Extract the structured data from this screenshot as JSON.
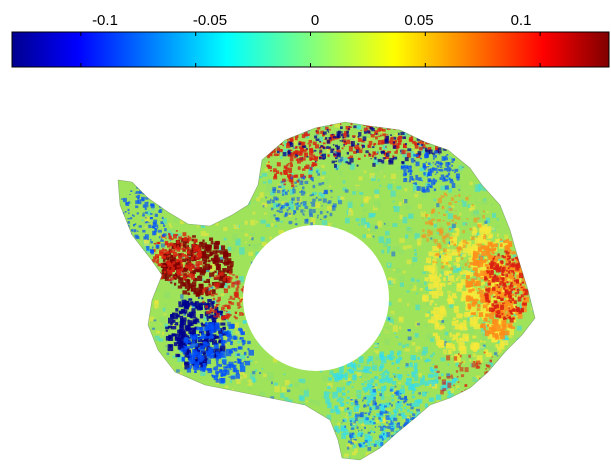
{
  "colorbar": {
    "tick_labels": [
      "-0.1",
      "-0.05",
      "0",
      "0.05",
      "0.1"
    ],
    "tick_values": [
      -0.1,
      -0.05,
      0,
      0.05,
      0.1
    ],
    "range": [
      -0.13,
      0.13
    ],
    "colormap": "jet",
    "orientation": "horizontal",
    "position": "top"
  },
  "map": {
    "region": "Antarctica",
    "masked_center": "pole-hole",
    "dominant_color": "#9ee35a",
    "colors": {
      "dark_blue": "#00008f",
      "blue": "#0050ff",
      "cyan": "#33ddee",
      "green": "#8fe06a",
      "yellow": "#f6e83a",
      "orange": "#ff8c1a",
      "red": "#d92010",
      "dark_red": "#7f0000"
    }
  }
}
